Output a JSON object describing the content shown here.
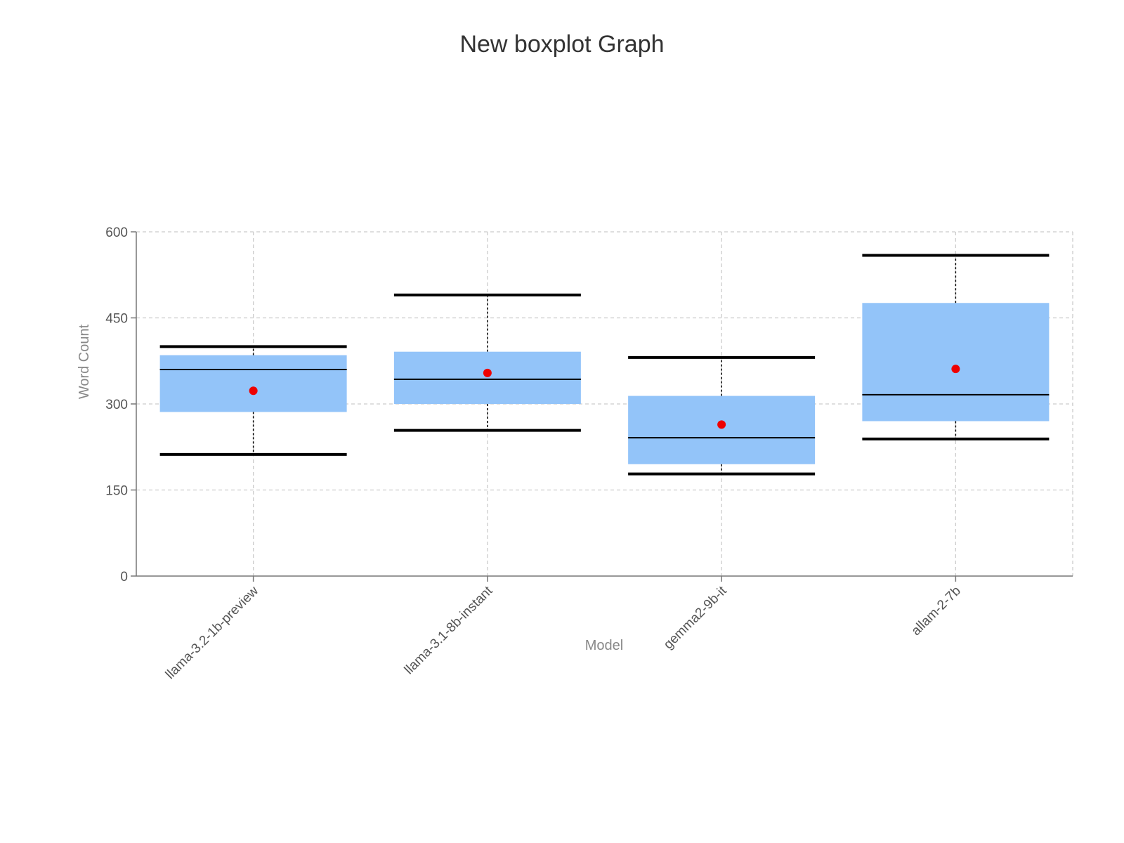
{
  "chart_data": {
    "type": "boxplot",
    "title": "New boxplot Graph",
    "xlabel": "Model",
    "ylabel": "Word Count",
    "ylim": [
      0,
      600
    ],
    "yticks": [
      0,
      150,
      300,
      450,
      600
    ],
    "grid": true,
    "categories": [
      "llama-3.2-1b-preview",
      "llama-3.1-8b-instant",
      "gemma2-9b-it",
      "allam-2-7b"
    ],
    "boxes": [
      {
        "min": 212,
        "q1": 286,
        "median": 360,
        "q3": 385,
        "max": 400,
        "mean": 323
      },
      {
        "min": 254,
        "q1": 300,
        "median": 343,
        "q3": 391,
        "max": 490,
        "mean": 354
      },
      {
        "min": 178,
        "q1": 195,
        "median": 241,
        "q3": 314,
        "max": 381,
        "mean": 264
      },
      {
        "min": 239,
        "q1": 270,
        "median": 316,
        "q3": 476,
        "max": 559,
        "mean": 361
      }
    ],
    "colors": {
      "box": "#93c4f9",
      "median": "#000000",
      "whisker": "#000000",
      "mean": "#ee0000",
      "grid": "#cccccc",
      "axis": "#777777"
    }
  }
}
